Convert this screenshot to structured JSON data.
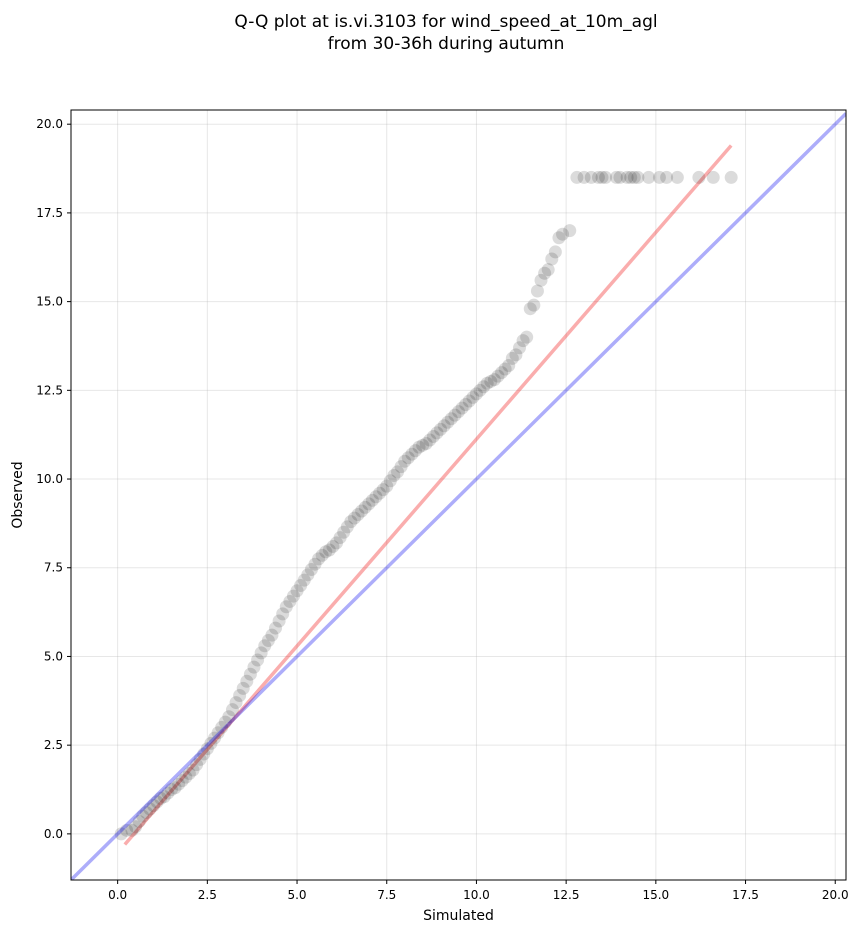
{
  "chart_data": {
    "type": "scatter",
    "title_lines": [
      "Q-Q plot at is.vi.3103 for wind_speed_at_10m_agl",
      "from 30-36h during autumn"
    ],
    "xlabel": "Simulated",
    "ylabel": "Observed",
    "xlim": [
      -1.3,
      20.3
    ],
    "ylim": [
      -1.3,
      20.4
    ],
    "xticks": [
      0.0,
      2.5,
      5.0,
      7.5,
      10.0,
      12.5,
      15.0,
      17.5,
      20.0
    ],
    "yticks": [
      0.0,
      2.5,
      5.0,
      7.5,
      10.0,
      12.5,
      15.0,
      17.5,
      20.0
    ],
    "xtick_labels": [
      "0.0",
      "2.5",
      "5.0",
      "7.5",
      "10.0",
      "12.5",
      "15.0",
      "17.5",
      "20.0"
    ],
    "ytick_labels": [
      "0.0",
      "2.5",
      "5.0",
      "7.5",
      "10.0",
      "12.5",
      "15.0",
      "17.5",
      "20.0"
    ],
    "grid": true,
    "reference_line": {
      "slope": 1,
      "intercept": 0,
      "color": "#0000ee"
    },
    "fit_line": {
      "x": [
        0.2,
        17.1
      ],
      "y": [
        -0.3,
        19.4
      ],
      "color": "#ee0000"
    },
    "point_color": "#000000",
    "points": {
      "x": [
        0.1,
        0.25,
        0.4,
        0.5,
        0.6,
        0.7,
        0.8,
        0.9,
        1.0,
        1.1,
        1.2,
        1.3,
        1.4,
        1.5,
        1.6,
        1.7,
        1.8,
        1.9,
        2.0,
        2.1,
        2.2,
        2.3,
        2.4,
        2.5,
        2.6,
        2.7,
        2.8,
        2.9,
        3.0,
        3.1,
        3.2,
        3.3,
        3.4,
        3.5,
        3.6,
        3.7,
        3.8,
        3.9,
        4.0,
        4.1,
        4.2,
        4.3,
        4.4,
        4.5,
        4.6,
        4.7,
        4.8,
        4.9,
        5.0,
        5.1,
        5.2,
        5.3,
        5.4,
        5.5,
        5.6,
        5.7,
        5.8,
        5.9,
        6.0,
        6.1,
        6.2,
        6.3,
        6.4,
        6.5,
        6.6,
        6.7,
        6.8,
        6.9,
        7.0,
        7.1,
        7.2,
        7.3,
        7.4,
        7.5,
        7.6,
        7.7,
        7.8,
        7.9,
        8.0,
        8.1,
        8.2,
        8.3,
        8.4,
        8.5,
        8.6,
        8.7,
        8.8,
        8.9,
        9.0,
        9.1,
        9.2,
        9.3,
        9.4,
        9.5,
        9.6,
        9.7,
        9.8,
        9.9,
        10.0,
        10.1,
        10.2,
        10.3,
        10.4,
        10.5,
        10.6,
        10.7,
        10.8,
        10.9,
        11.0,
        11.1,
        11.2,
        11.3,
        11.4,
        11.5,
        11.6,
        11.7,
        11.8,
        11.9,
        12.0,
        12.1,
        12.2,
        12.3,
        12.4,
        12.6,
        12.8,
        13.0,
        13.2,
        13.4,
        13.5,
        13.6,
        13.9,
        14.0,
        14.2,
        14.3,
        14.4,
        14.5,
        14.8,
        15.1,
        15.3,
        15.6,
        16.2,
        16.6,
        17.1
      ],
      "y": [
        0.0,
        0.1,
        0.1,
        0.2,
        0.35,
        0.5,
        0.6,
        0.7,
        0.8,
        0.9,
        1.0,
        1.05,
        1.15,
        1.25,
        1.3,
        1.4,
        1.5,
        1.6,
        1.7,
        1.8,
        1.95,
        2.1,
        2.25,
        2.4,
        2.55,
        2.7,
        2.85,
        3.0,
        3.15,
        3.3,
        3.5,
        3.7,
        3.9,
        4.1,
        4.3,
        4.5,
        4.7,
        4.9,
        5.1,
        5.3,
        5.45,
        5.6,
        5.8,
        6.0,
        6.2,
        6.4,
        6.55,
        6.7,
        6.85,
        7.0,
        7.15,
        7.3,
        7.45,
        7.6,
        7.75,
        7.85,
        7.95,
        8.0,
        8.1,
        8.2,
        8.35,
        8.5,
        8.65,
        8.8,
        8.9,
        9.0,
        9.1,
        9.2,
        9.3,
        9.4,
        9.5,
        9.6,
        9.7,
        9.8,
        9.95,
        10.1,
        10.2,
        10.35,
        10.5,
        10.6,
        10.7,
        10.8,
        10.9,
        10.95,
        11.0,
        11.1,
        11.2,
        11.3,
        11.4,
        11.5,
        11.6,
        11.7,
        11.8,
        11.9,
        12.0,
        12.1,
        12.2,
        12.3,
        12.4,
        12.5,
        12.6,
        12.7,
        12.75,
        12.8,
        12.9,
        13.0,
        13.1,
        13.2,
        13.4,
        13.5,
        13.7,
        13.9,
        14.0,
        14.8,
        14.9,
        15.3,
        15.6,
        15.8,
        15.9,
        16.2,
        16.4,
        16.8,
        16.9,
        17.0,
        18.5,
        18.5,
        18.5,
        18.5,
        18.5,
        18.5,
        18.5,
        18.5,
        18.5,
        18.5,
        18.5,
        18.5,
        18.5,
        18.5,
        18.5,
        18.5,
        18.5,
        18.5,
        18.5
      ]
    }
  }
}
